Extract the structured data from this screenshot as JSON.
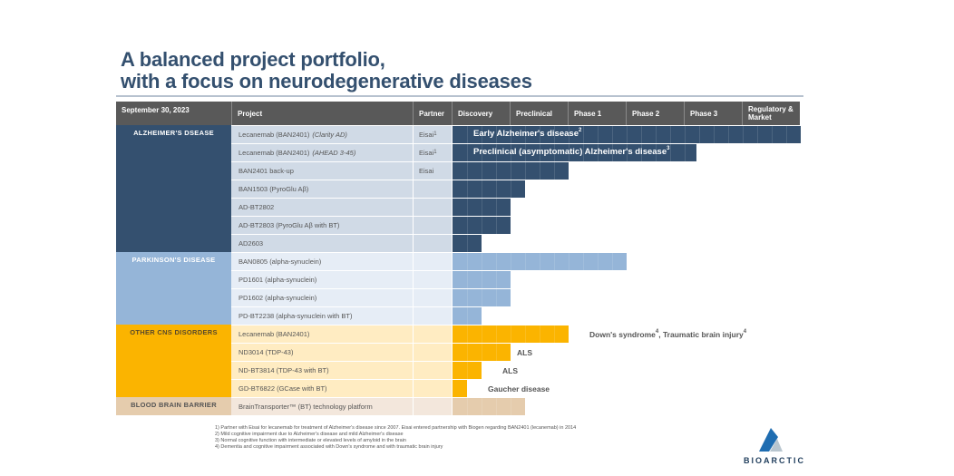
{
  "title": {
    "line1": "A balanced project portfolio,",
    "line2": "with a focus on neurodegenerative diseases"
  },
  "table_header": {
    "date": "September 30, 2023",
    "project": "Project",
    "partner": "Partner",
    "stages": [
      "Discovery",
      "Preclinical",
      "Phase 1",
      "Phase 2",
      "Phase 3",
      "Regulatory & Market"
    ]
  },
  "colors": {
    "alzheimers": "#34506f",
    "parkinsons": "#95b5d8",
    "other_cns": "#fbb400",
    "bbb": "#e5ccad",
    "header": "#595959"
  },
  "categories": [
    {
      "label": "ALZHEIMER'S DSEASE",
      "key": "alzheimers"
    },
    {
      "label": "PARKINSON'S DISEASE",
      "key": "parkinsons"
    },
    {
      "label": "OTHER CNS DISORDERS",
      "key": "other_cns"
    },
    {
      "label": "BLOOD BRAIN BARRIER",
      "key": "bbb"
    }
  ],
  "projects": [
    {
      "name": "Lecanemab (BAN2401)",
      "italic": "(Clarity AD)",
      "partner": "Eisai",
      "partner_sup": "1",
      "stage_progress": 6.0,
      "bar_label": "Early Alzheimer's disease",
      "bar_label_sup": "2"
    },
    {
      "name": "Lecanemab (BAN2401)",
      "italic": "(AHEAD 3-45)",
      "partner": "Eisai",
      "partner_sup": "1",
      "stage_progress": 4.2,
      "bar_label": "Preclinical (asymptomatic) Alzheimer's disease",
      "bar_label_sup": "3"
    },
    {
      "name": "BAN2401 back-up",
      "partner": "Eisai",
      "stage_progress": 2.0
    },
    {
      "name": "BAN1503 (PyroGlu Aβ)",
      "partner": "",
      "stage_progress": 1.25
    },
    {
      "name": "AD-BT2802",
      "partner": "",
      "stage_progress": 1.0
    },
    {
      "name": "AD-BT2803 (PyroGlu Aβ with BT)",
      "partner": "",
      "stage_progress": 1.0
    },
    {
      "name": "AD2603",
      "partner": "",
      "stage_progress": 0.5
    },
    {
      "name": "BAN0805 (alpha-synuclein)",
      "partner": "",
      "stage_progress": 3.0
    },
    {
      "name": "PD1601 (alpha-synuclein)",
      "partner": "",
      "stage_progress": 1.0
    },
    {
      "name": "PD1602 (alpha-synuclein)",
      "partner": "",
      "stage_progress": 1.0
    },
    {
      "name": "PD-BT2238 (alpha-synuclein with BT)",
      "partner": "",
      "stage_progress": 0.5
    },
    {
      "name": "Lecanemab (BAN2401)",
      "partner": "",
      "stage_progress": 2.0,
      "ext_label": "Down's syndrome",
      "ext_sup": "4",
      "ext_label2": ", Traumatic brain injury",
      "ext_sup2": "4"
    },
    {
      "name": "ND3014 (TDP-43)",
      "partner": "",
      "stage_progress": 1.0,
      "ext_label": "ALS"
    },
    {
      "name": "ND-BT3814 (TDP-43 with BT)",
      "partner": "",
      "stage_progress": 0.5,
      "ext_label": "ALS"
    },
    {
      "name": "GD-BT6822 (GCase with BT)",
      "partner": "",
      "stage_progress": 0.25,
      "ext_label": "Gaucher disease"
    },
    {
      "name": "BrainTransporter™ (BT) technology platform",
      "partner": "",
      "stage_progress": 1.25
    }
  ],
  "footnotes": [
    "1) Partner with Eisai for lecanemab for treatment of Alzheimer's disease since 2007. Eisai entered partnership with Biogen regarding BAN2401 (lecanemab) in 2014",
    "2) Mild cognitive impairment due to Alzheimer's disease and mild Alzheimer's disease",
    "3) Normal cognitive function with intermediate or elevated levels of amyloid in the brain",
    "4) Dementia and cognitive impairment associated with Down's syndrome and with traumatic brain injury"
  ],
  "logo": {
    "text": "BIOARCTIC"
  }
}
